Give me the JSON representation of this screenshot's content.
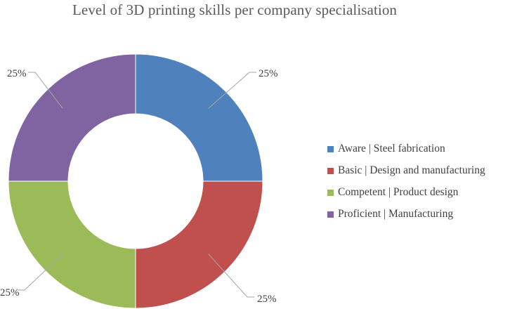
{
  "chart_data": {
    "type": "pie",
    "subtype": "donut",
    "title": "Level of 3D printing skills per company specialisation",
    "categories": [
      "Aware | Steel fabrication",
      "Basic | Design and manufacturing",
      "Competent | Product design",
      "Proficient | Manufacturing"
    ],
    "values": [
      25,
      25,
      25,
      25
    ],
    "data_labels": [
      "25%",
      "25%",
      "25%",
      "25%"
    ],
    "colors": [
      "#4f81bd",
      "#c0504d",
      "#9bbb59",
      "#8064a2"
    ],
    "legend_position": "right",
    "start_angle": "top, clockwise"
  }
}
